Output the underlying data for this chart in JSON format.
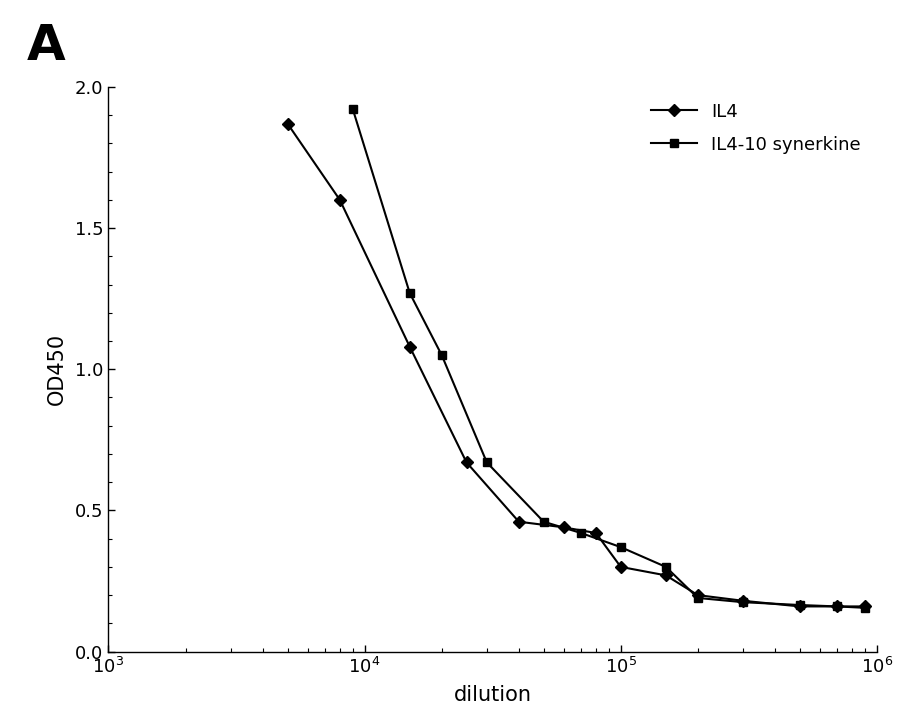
{
  "title_label": "A",
  "xlabel": "dilution",
  "ylabel": "OD450",
  "xlim": [
    1000,
    1000000
  ],
  "ylim": [
    0.0,
    2.0
  ],
  "yticks": [
    0.0,
    0.5,
    1.0,
    1.5,
    2.0
  ],
  "il4_x": [
    5000,
    8000,
    15000,
    25000,
    40000,
    60000,
    80000,
    100000,
    150000,
    200000,
    300000,
    500000,
    700000,
    900000
  ],
  "il4_y": [
    1.87,
    1.6,
    1.08,
    0.67,
    0.46,
    0.44,
    0.42,
    0.3,
    0.27,
    0.2,
    0.18,
    0.16,
    0.16,
    0.16
  ],
  "syn_x": [
    9000,
    15000,
    20000,
    30000,
    50000,
    70000,
    100000,
    150000,
    200000,
    300000,
    500000,
    700000,
    900000
  ],
  "syn_y": [
    1.92,
    1.27,
    1.05,
    0.67,
    0.46,
    0.42,
    0.37,
    0.3,
    0.19,
    0.175,
    0.165,
    0.16,
    0.155
  ],
  "il4_color": "#000000",
  "syn_color": "#000000",
  "legend_il4": "IL4",
  "legend_syn": "IL4-10 synerkine",
  "background_color": "#ffffff"
}
